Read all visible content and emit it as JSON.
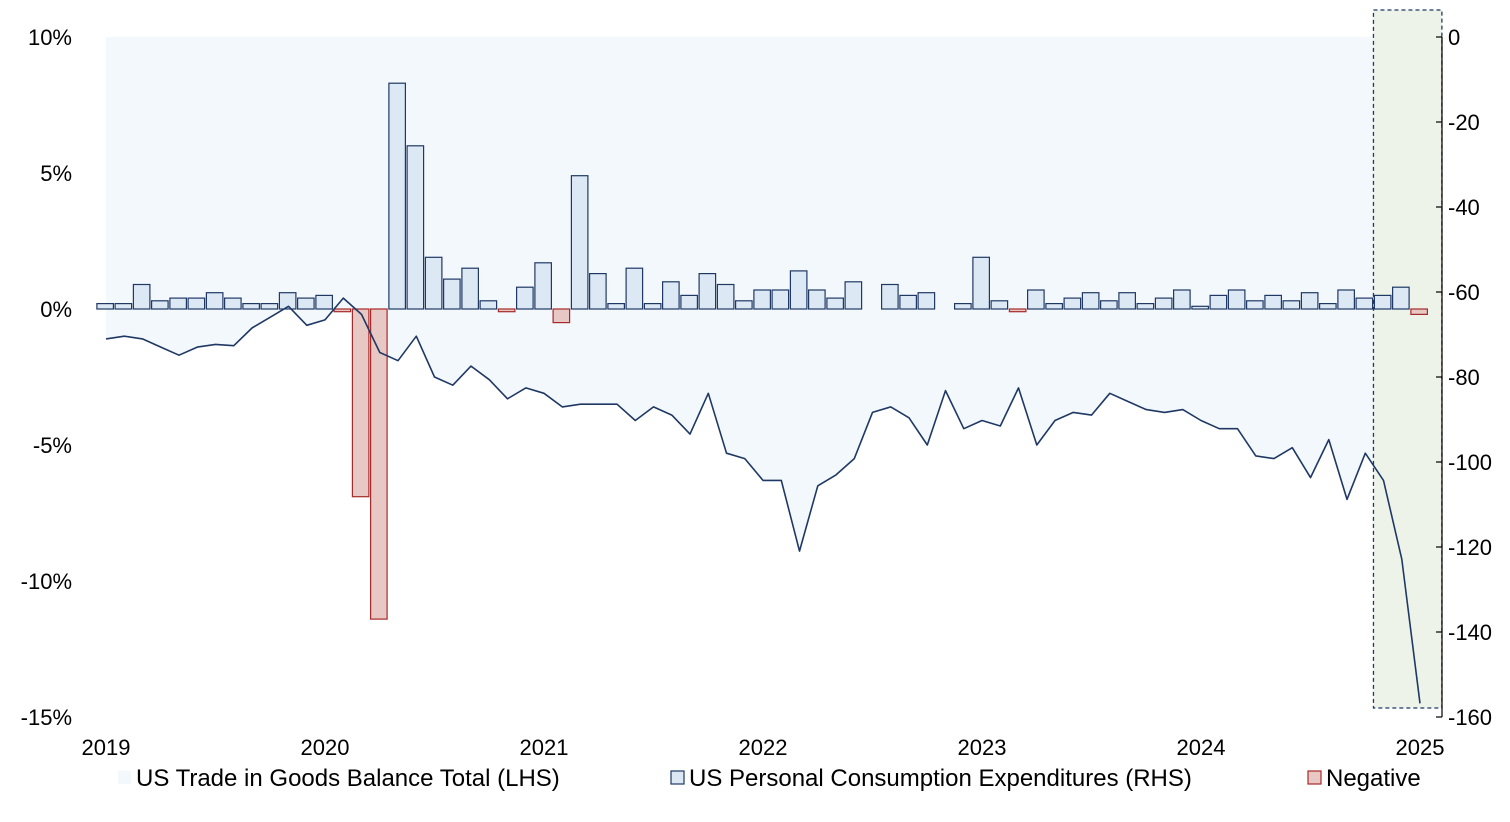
{
  "chart_data": {
    "type": "bar+line+area",
    "x": [
      "2019-01",
      "2019-02",
      "2019-03",
      "2019-04",
      "2019-05",
      "2019-06",
      "2019-07",
      "2019-08",
      "2019-09",
      "2019-10",
      "2019-11",
      "2019-12",
      "2020-01",
      "2020-02",
      "2020-03",
      "2020-04",
      "2020-05",
      "2020-06",
      "2020-07",
      "2020-08",
      "2020-09",
      "2020-10",
      "2020-11",
      "2020-12",
      "2021-01",
      "2021-02",
      "2021-03",
      "2021-04",
      "2021-05",
      "2021-06",
      "2021-07",
      "2021-08",
      "2021-09",
      "2021-10",
      "2021-11",
      "2021-12",
      "2022-01",
      "2022-02",
      "2022-03",
      "2022-04",
      "2022-05",
      "2022-06",
      "2022-07",
      "2022-08",
      "2022-09",
      "2022-10",
      "2022-11",
      "2022-12",
      "2023-01",
      "2023-02",
      "2023-03",
      "2023-04",
      "2023-05",
      "2023-06",
      "2023-07",
      "2023-08",
      "2023-09",
      "2023-10",
      "2023-11",
      "2023-12",
      "2024-01",
      "2024-02",
      "2024-03",
      "2024-04",
      "2024-05",
      "2024-06",
      "2024-07",
      "2024-08",
      "2024-09",
      "2024-10",
      "2024-11",
      "2024-12",
      "2025-01"
    ],
    "x_ticks": [
      "2019",
      "2020",
      "2021",
      "2022",
      "2023",
      "2024",
      "2025"
    ],
    "series": [
      {
        "name": "US Trade in Goods Balance Total (LHS)",
        "axis": "left",
        "render": "area",
        "color": "#f3f8fc",
        "values": [
          -1.1,
          -1.0,
          -1.1,
          -1.4,
          -1.7,
          -1.4,
          -1.3,
          -1.35,
          -0.7,
          -0.3,
          0.1,
          -0.6,
          -0.4,
          0.4,
          -0.2,
          -1.6,
          -1.9,
          -1.0,
          -2.5,
          -2.8,
          -2.1,
          -2.6,
          -3.3,
          -2.9,
          -3.1,
          -3.6,
          -3.5,
          -3.5,
          -3.5,
          -4.1,
          -3.6,
          -3.9,
          -4.6,
          -3.1,
          -5.3,
          -5.5,
          -6.3,
          -6.3,
          -8.9,
          -6.5,
          -6.1,
          -5.5,
          -3.8,
          -3.6,
          -4.0,
          -5.0,
          -3.0,
          -4.4,
          -4.1,
          -4.3,
          -2.9,
          -5.0,
          -4.1,
          -3.8,
          -3.9,
          -3.1,
          -3.4,
          -3.7,
          -3.8,
          -3.7,
          -4.1,
          -4.4,
          -4.4,
          -5.4,
          -5.5,
          -5.1,
          -6.2,
          -4.8,
          -7.0,
          -5.3,
          -6.3,
          -9.2,
          -14.5
        ]
      },
      {
        "name": "US Personal Consumption Expenditures (RHS)",
        "axis": "left",
        "render": "bar",
        "fill": "#dce9f5",
        "stroke": "#1f3864",
        "values": [
          0.2,
          0.2,
          0.9,
          0.3,
          0.4,
          0.4,
          0.6,
          0.4,
          0.2,
          0.2,
          0.6,
          0.4,
          0.5,
          -0.1,
          -6.9,
          -11.4,
          8.3,
          6.0,
          1.9,
          1.1,
          1.5,
          0.3,
          -0.1,
          0.8,
          1.7,
          -0.5,
          4.9,
          1.3,
          0.2,
          1.5,
          0.2,
          1.0,
          0.5,
          1.3,
          0.9,
          0.3,
          0.7,
          0.7,
          1.4,
          0.7,
          0.4,
          1.0,
          null,
          0.9,
          0.5,
          0.6,
          null,
          0.2,
          1.9,
          0.3,
          -0.1,
          0.7,
          0.2,
          0.4,
          0.6,
          0.3,
          0.6,
          0.2,
          0.4,
          0.7,
          0.1,
          0.5,
          0.7,
          0.3,
          0.5,
          0.3,
          0.6,
          0.2,
          0.7,
          0.4,
          0.5,
          0.8,
          -0.2
        ]
      },
      {
        "name": "Negative",
        "render": "bar",
        "fill": "#e8c8c4",
        "stroke": "#a52a2a"
      }
    ],
    "y_left": {
      "ticks": [
        10,
        5,
        0,
        -5,
        -10,
        -15
      ],
      "labels": [
        "10%",
        "5%",
        "0%",
        "-5%",
        "-10%",
        "-15%"
      ],
      "range": [
        -15,
        10
      ]
    },
    "y_right": {
      "ticks": [
        0,
        -20,
        -40,
        -60,
        -80,
        -100,
        -120,
        -140,
        -160
      ],
      "labels": [
        "0",
        "-20",
        "-40",
        "-60",
        "-80",
        "-100",
        "-120",
        "-140",
        "-160"
      ],
      "range": [
        -160,
        0
      ]
    },
    "highlight": {
      "from": "2024-11",
      "to": "2025-01",
      "fill": "#eef3ea",
      "stroke": "#1f3864"
    },
    "line_color": "#1f3864",
    "legend_position": "bottom",
    "grid": false
  }
}
